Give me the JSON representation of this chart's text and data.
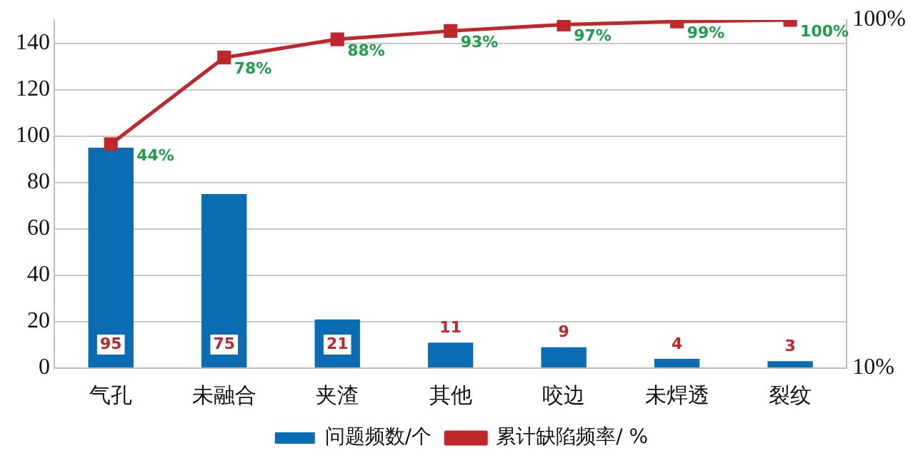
{
  "chart_data": {
    "type": "bar",
    "categories": [
      "气孔",
      "未融合",
      "夹渣",
      "其他",
      "咬边",
      "未焊透",
      "裂纹"
    ],
    "series": [
      {
        "name": "问题频数/个",
        "color": "#0a6db3",
        "values": [
          95,
          75,
          21,
          11,
          9,
          4,
          3
        ],
        "value_labels": [
          "95",
          "75",
          "21",
          "11",
          "9",
          "4",
          "3"
        ]
      },
      {
        "name": "累计缺陷频率/ %",
        "type": "line",
        "axis": "y2",
        "color": "#c0272d",
        "values": [
          44,
          78,
          88,
          93,
          97,
          99,
          100
        ],
        "value_labels": [
          "44%",
          "78%",
          "88%",
          "93%",
          "97%",
          "99%",
          "100%"
        ]
      }
    ],
    "ylim": [
      0,
      150
    ],
    "yticks": [
      0,
      20,
      40,
      60,
      80,
      100,
      120,
      140
    ],
    "y2lim": [
      10,
      100
    ],
    "y2ticks": [
      {
        "value": 10,
        "label": "10%"
      },
      {
        "value": 100,
        "label": "100%"
      }
    ],
    "log": "y2",
    "grid": "y",
    "legend": "bottom",
    "marker": "square"
  }
}
